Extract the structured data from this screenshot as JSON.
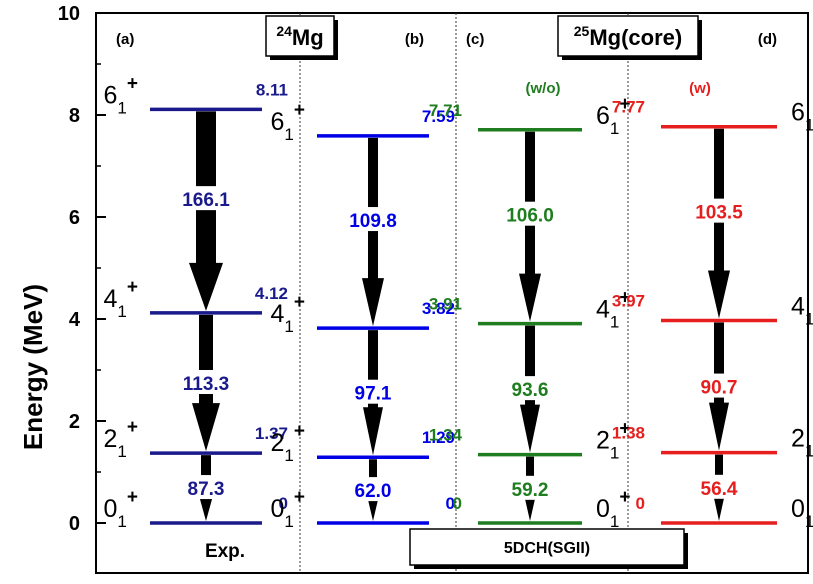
{
  "chart_data": {
    "type": "level-scheme",
    "ylabel": "Energy (MeV)",
    "ylim": [
      0,
      10
    ],
    "yticks": [
      0,
      2,
      4,
      6,
      8,
      10
    ],
    "yticks_labels": [
      "0",
      "2",
      "4",
      "6",
      "8",
      "10"
    ],
    "grid": false,
    "nucleus_boxes": [
      {
        "mass": "24",
        "symbol": "Mg",
        "suffix": ""
      },
      {
        "mass": "25",
        "symbol": "Mg",
        "suffix": "(core)"
      }
    ],
    "legend_box": "5DCH(SGII)",
    "panels": [
      {
        "label": "(a)",
        "note": "Exp.",
        "tag": "",
        "color": "#1a1a8c",
        "levels": [
          {
            "spin": "0",
            "sub": "1",
            "parity": "+",
            "energy": 0,
            "energy_label": "0"
          },
          {
            "spin": "2",
            "sub": "1",
            "parity": "+",
            "energy": 1.37,
            "energy_label": "1.37"
          },
          {
            "spin": "4",
            "sub": "1",
            "parity": "+",
            "energy": 4.12,
            "energy_label": "4.12"
          },
          {
            "spin": "6",
            "sub": "1",
            "parity": "+",
            "energy": 8.11,
            "energy_label": "8.11"
          }
        ],
        "transitions": [
          {
            "from": 3,
            "to": 2,
            "value": 166.1,
            "label": "166.1"
          },
          {
            "from": 2,
            "to": 1,
            "value": 113.3,
            "label": "113.3"
          },
          {
            "from": 1,
            "to": 0,
            "value": 87.3,
            "label": "87.3"
          }
        ]
      },
      {
        "label": "(b)",
        "note": "",
        "tag": "",
        "color": "#0000e6",
        "levels": [
          {
            "spin": "0",
            "sub": "1",
            "parity": "+",
            "energy": 0,
            "energy_label": "0"
          },
          {
            "spin": "2",
            "sub": "1",
            "parity": "+",
            "energy": 1.29,
            "energy_label": "1.29"
          },
          {
            "spin": "4",
            "sub": "1",
            "parity": "+",
            "energy": 3.82,
            "energy_label": "3.82"
          },
          {
            "spin": "6",
            "sub": "1",
            "parity": "+",
            "energy": 7.59,
            "energy_label": "7.59"
          }
        ],
        "transitions": [
          {
            "from": 3,
            "to": 2,
            "value": 109.8,
            "label": "109.8"
          },
          {
            "from": 2,
            "to": 1,
            "value": 97.1,
            "label": "97.1"
          },
          {
            "from": 1,
            "to": 0,
            "value": 62.0,
            "label": "62.0"
          }
        ]
      },
      {
        "label": "(c)",
        "note": "",
        "tag": "(w/o)",
        "color": "#1e7d1e",
        "levels": [
          {
            "spin": "0",
            "sub": "1",
            "parity": "+",
            "energy": 0,
            "energy_label": "0"
          },
          {
            "spin": "2",
            "sub": "1",
            "parity": "+",
            "energy": 1.34,
            "energy_label": "1.34"
          },
          {
            "spin": "4",
            "sub": "1",
            "parity": "+",
            "energy": 3.91,
            "energy_label": "3.91"
          },
          {
            "spin": "6",
            "sub": "1",
            "parity": "+",
            "energy": 7.71,
            "energy_label": "7.71"
          }
        ],
        "transitions": [
          {
            "from": 3,
            "to": 2,
            "value": 106.0,
            "label": "106.0"
          },
          {
            "from": 2,
            "to": 1,
            "value": 93.6,
            "label": "93.6"
          },
          {
            "from": 1,
            "to": 0,
            "value": 59.2,
            "label": "59.2"
          }
        ]
      },
      {
        "label": "(d)",
        "note": "",
        "tag": "(w)",
        "color": "#e61e1e",
        "levels": [
          {
            "spin": "0",
            "sub": "1",
            "parity": "+",
            "energy": 0,
            "energy_label": "0"
          },
          {
            "spin": "2",
            "sub": "1",
            "parity": "+",
            "energy": 1.38,
            "energy_label": "1.38"
          },
          {
            "spin": "4",
            "sub": "1",
            "parity": "+",
            "energy": 3.97,
            "energy_label": "3.97"
          },
          {
            "spin": "6",
            "sub": "1",
            "parity": "+",
            "energy": 7.77,
            "energy_label": "7.77"
          }
        ],
        "transitions": [
          {
            "from": 3,
            "to": 2,
            "value": 103.5,
            "label": "103.5"
          },
          {
            "from": 2,
            "to": 1,
            "value": 90.7,
            "label": "90.7"
          },
          {
            "from": 1,
            "to": 0,
            "value": 56.4,
            "label": "56.4"
          }
        ]
      }
    ]
  }
}
